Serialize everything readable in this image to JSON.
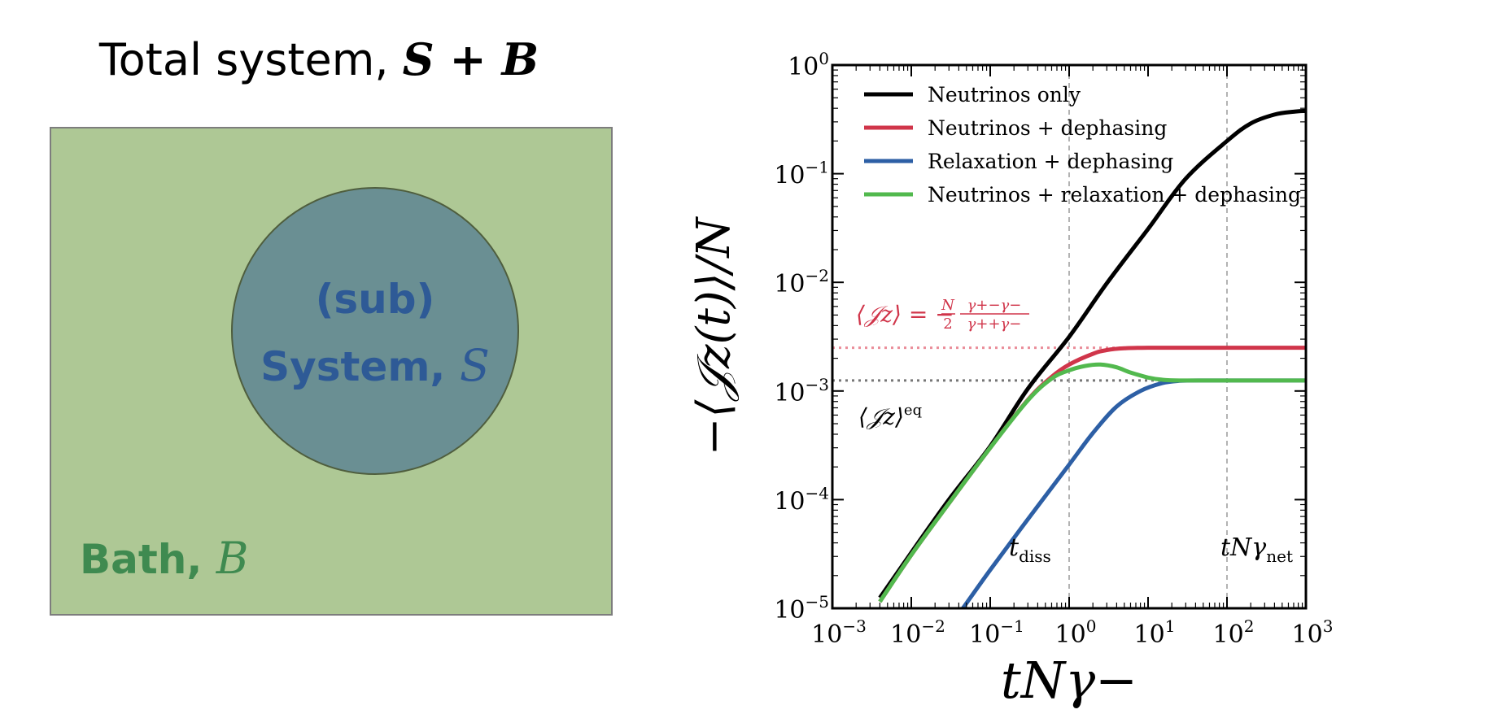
{
  "diagram": {
    "title_text": "Total system, ",
    "title_math": "S + B",
    "circle_line1": "(sub)",
    "circle_line2_text": "System, ",
    "circle_line2_math": "S",
    "bath_text": "Bath, ",
    "bath_math": "B",
    "colors": {
      "bath_fill": "#aec895",
      "circle_fill": "#6a8f93",
      "circle_text": "#2e5a96",
      "bath_text": "#3f8a50"
    }
  },
  "chart_data": {
    "type": "line",
    "xscale": "log",
    "yscale": "log",
    "xlim": [
      0.001,
      1000
    ],
    "ylim": [
      1e-05,
      1
    ],
    "xlabel": "tNγ−",
    "ylabel": "−⟨𝒥z(t)⟩/N",
    "xticks": [
      {
        "value": 0.001,
        "base": "10",
        "exp": "−3"
      },
      {
        "value": 0.01,
        "base": "10",
        "exp": "−2"
      },
      {
        "value": 0.1,
        "base": "10",
        "exp": "−1"
      },
      {
        "value": 1,
        "base": "10",
        "exp": "0"
      },
      {
        "value": 10,
        "base": "10",
        "exp": "1"
      },
      {
        "value": 100,
        "base": "10",
        "exp": "2"
      },
      {
        "value": 1000,
        "base": "10",
        "exp": "3"
      }
    ],
    "yticks": [
      {
        "value": 1e-05,
        "base": "10",
        "exp": "−5"
      },
      {
        "value": 0.0001,
        "base": "10",
        "exp": "−4"
      },
      {
        "value": 0.001,
        "base": "10",
        "exp": "−3"
      },
      {
        "value": 0.01,
        "base": "10",
        "exp": "−2"
      },
      {
        "value": 0.1,
        "base": "10",
        "exp": "−1"
      },
      {
        "value": 1,
        "base": "10",
        "exp": "0"
      }
    ],
    "legend_position": "top-left",
    "series": [
      {
        "name": "Neutrinos only",
        "color": "#000000",
        "x": [
          0.004,
          0.01,
          0.03,
          0.1,
          0.3,
          1,
          3,
          10,
          30,
          100,
          200,
          400,
          700,
          1000
        ],
        "y": [
          1.25e-05,
          3.25e-05,
          0.0001,
          0.00031,
          0.00105,
          0.00315,
          0.0098,
          0.031,
          0.09,
          0.2,
          0.29,
          0.35,
          0.372,
          0.378
        ]
      },
      {
        "name": "Neutrinos + dephasing",
        "color": "#d0354a",
        "x": [
          0.004,
          0.01,
          0.03,
          0.1,
          0.3,
          0.6,
          1,
          2,
          3,
          5,
          10,
          100,
          1000
        ],
        "y": [
          1.15e-05,
          3.1e-05,
          9.25e-05,
          0.0003,
          0.00083,
          0.00135,
          0.00175,
          0.0022,
          0.00238,
          0.00247,
          0.0025,
          0.0025,
          0.0025
        ]
      },
      {
        "name": "Relaxation + dephasing",
        "color": "#2d5fa5",
        "x": [
          0.045,
          0.1,
          0.3,
          1,
          2,
          4,
          8,
          15,
          25,
          50,
          100,
          1000
        ],
        "y": [
          1e-05,
          2.25e-05,
          6.6e-05,
          0.00021,
          0.00041,
          0.00072,
          0.001,
          0.00118,
          0.00124,
          0.00125,
          0.00125,
          0.00125
        ]
      },
      {
        "name": "Neutrinos + relaxation + dephasing",
        "color": "#52b94e",
        "x": [
          0.004,
          0.01,
          0.03,
          0.1,
          0.3,
          0.6,
          1,
          1.6,
          2.5,
          4,
          6,
          10,
          15,
          25,
          100,
          1000
        ],
        "y": [
          1.15e-05,
          3.1e-05,
          9.25e-05,
          0.0003,
          0.00082,
          0.0013,
          0.00155,
          0.0017,
          0.00175,
          0.00165,
          0.00148,
          0.00133,
          0.00127,
          0.00125,
          0.00125,
          0.00125
        ]
      }
    ],
    "reference_lines": [
      {
        "orientation": "horizontal",
        "value": 0.0025,
        "color": "#ea8d99"
      },
      {
        "orientation": "horizontal",
        "value": 0.00125,
        "color": "#777777"
      },
      {
        "orientation": "vertical",
        "value": 1,
        "color": "#9a9a9a"
      },
      {
        "orientation": "vertical",
        "value": 100,
        "color": "#9a9a9a"
      }
    ],
    "annotations": {
      "red_label_lhs": "⟨𝒥z⟩ = −",
      "red_frac_num": "N",
      "red_frac_den": "2",
      "red_frac2_num": "γ+−γ−",
      "red_frac2_den": "γ++γ−",
      "red_color": "#d0354a",
      "eq_label": "⟨𝒥z⟩",
      "eq_sup": "eq",
      "tdiss_main": "t",
      "tdiss_sub": "diss",
      "tnet_main": "tNγ",
      "tnet_sub": "net"
    }
  }
}
